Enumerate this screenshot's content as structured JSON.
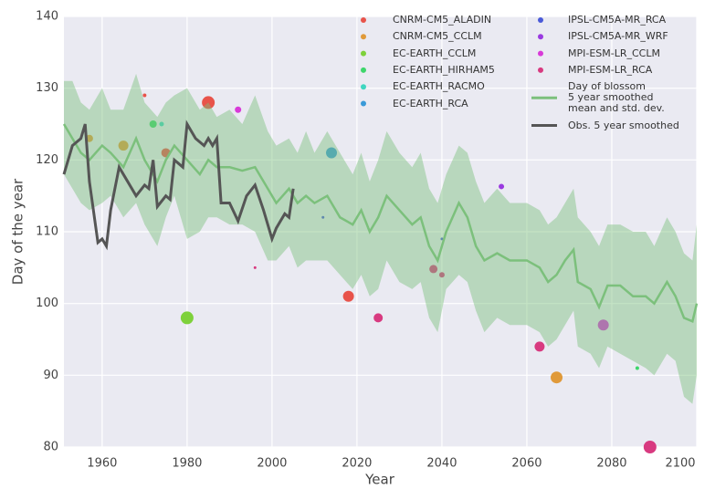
{
  "chart_data": {
    "type": "line",
    "x_label": "Year",
    "y_label": "Day of the year",
    "xlim": [
      1951,
      2100
    ],
    "ylim": [
      80,
      140
    ],
    "xticks": [
      1960,
      1980,
      2000,
      2020,
      2040,
      2060,
      2080,
      2100
    ],
    "yticks": [
      80,
      90,
      100,
      110,
      120,
      130,
      140
    ],
    "grid": true,
    "legend": "upper right",
    "series": [
      {
        "name": "CNRM-CM5_ALADIN",
        "type": "scatter",
        "color": "#e8534a",
        "x": [
          1985,
          1975,
          2018,
          1970
        ],
        "values": [
          128,
          121,
          101,
          129
        ],
        "sizes": [
          7,
          5,
          6,
          2
        ]
      },
      {
        "name": "CNRM-CM5_CCLM",
        "type": "scatter",
        "color": "#e09a3a",
        "x": [
          1957,
          1965,
          2067
        ],
        "values": [
          123,
          122,
          89.7
        ],
        "sizes": [
          4,
          5.5,
          6.5
        ]
      },
      {
        "name": "EC-EARTH_CCLM",
        "type": "scatter",
        "color": "#7ed13b",
        "x": [
          1980
        ],
        "values": [
          98
        ],
        "sizes": [
          7
        ]
      },
      {
        "name": "EC-EARTH_HIRHAM5",
        "type": "scatter",
        "color": "#3ed66b",
        "x": [
          1972,
          2086
        ],
        "values": [
          125,
          91
        ],
        "sizes": [
          4,
          2
        ]
      },
      {
        "name": "EC-EARTH_RACMO",
        "type": "scatter",
        "color": "#3fd6c0",
        "x": [
          1974
        ],
        "values": [
          125
        ],
        "sizes": [
          2.5
        ]
      },
      {
        "name": "EC-EARTH_RCA",
        "type": "scatter",
        "color": "#3a9ad8",
        "x": [
          2014
        ],
        "values": [
          121
        ],
        "sizes": [
          6
        ]
      },
      {
        "name": "IPSL-CM5A-MR_RCA",
        "type": "scatter",
        "color": "#4a5ad8",
        "x": [
          2012,
          2040
        ],
        "values": [
          112,
          109
        ],
        "sizes": [
          1.5,
          1.5
        ]
      },
      {
        "name": "IPSL-CM5A-MR_WRF",
        "type": "scatter",
        "color": "#9a3ae0",
        "x": [
          2054
        ],
        "values": [
          116.3
        ],
        "sizes": [
          3
        ]
      },
      {
        "name": "MPI-ESM-LR_CCLM",
        "type": "scatter",
        "color": "#d83ad8",
        "x": [
          1992,
          2078
        ],
        "values": [
          127,
          97
        ],
        "sizes": [
          3.5,
          6
        ]
      },
      {
        "name": "MPI-ESM-LR_RCA",
        "type": "scatter",
        "color": "#d83a80",
        "x": [
          2025,
          2038,
          2040,
          2063,
          2089,
          1996
        ],
        "values": [
          98,
          104.8,
          104,
          94,
          80,
          105
        ],
        "sizes": [
          5,
          4.5,
          3,
          5.5,
          7,
          1.5
        ]
      },
      {
        "name": "Day of blossom\n5 year smoothed\nmean and std. dev.",
        "type": "line",
        "color": "#7cc07c",
        "x": [
          1951,
          1953,
          1955,
          1957,
          1960,
          1962,
          1965,
          1968,
          1970,
          1973,
          1975,
          1977,
          1980,
          1983,
          1985,
          1987,
          1990,
          1993,
          1996,
          1999,
          2001,
          2004,
          2006,
          2008,
          2010,
          2013,
          2016,
          2019,
          2021,
          2023,
          2025,
          2027,
          2030,
          2033,
          2035,
          2037,
          2039,
          2041,
          2044,
          2046,
          2048,
          2050,
          2053,
          2056,
          2060,
          2063,
          2065,
          2067,
          2069,
          2071,
          2072,
          2075,
          2077,
          2079,
          2082,
          2085,
          2088,
          2090,
          2093,
          2095,
          2097,
          2099,
          2100
        ],
        "values": [
          125,
          123,
          121,
          120,
          122,
          121,
          119,
          123,
          120,
          117,
          120,
          122,
          120,
          118,
          120,
          119,
          119,
          118.5,
          119,
          116,
          114,
          116,
          114,
          115,
          114,
          115,
          112,
          111,
          113,
          110,
          112,
          115,
          113,
          111,
          112,
          108,
          106,
          110,
          114,
          112,
          108,
          106,
          107,
          106,
          106,
          105,
          103,
          104,
          106,
          107.5,
          103,
          102,
          99.5,
          102.5,
          102.5,
          101,
          101,
          100,
          103,
          101,
          98,
          97.5,
          100
        ],
        "band_high": [
          131,
          131,
          128,
          127,
          130,
          127,
          127,
          132,
          128,
          126,
          128,
          129,
          130,
          127,
          128,
          126,
          127,
          125,
          129,
          124,
          122,
          123,
          121,
          124,
          121,
          124,
          121,
          118,
          121,
          117,
          120,
          124,
          121,
          119,
          121,
          116,
          114,
          118,
          122,
          121,
          117,
          114,
          116,
          114,
          114,
          113,
          111,
          112,
          114,
          116,
          112,
          110,
          108,
          111,
          111,
          110,
          110,
          108,
          112,
          110,
          107,
          106,
          111
        ],
        "band_low": [
          118,
          116,
          114,
          113,
          114,
          115,
          112,
          114,
          111,
          108,
          112,
          115,
          109,
          110,
          112,
          112,
          111,
          111,
          110,
          106,
          106,
          108,
          105,
          106,
          106,
          106,
          104,
          102,
          104,
          101,
          102,
          106,
          103,
          102,
          103,
          98,
          96,
          102,
          104,
          103,
          99,
          96,
          98,
          97,
          97,
          96,
          94,
          95,
          97,
          99,
          94,
          93,
          91,
          94,
          93,
          92,
          91,
          90,
          93,
          92,
          87,
          86,
          90
        ]
      },
      {
        "name": "Obs. 5 year smoothed",
        "type": "line",
        "color": "#555555",
        "x": [
          1951,
          1953,
          1955,
          1956,
          1957,
          1959,
          1960,
          1961,
          1962,
          1964,
          1966,
          1968,
          1970,
          1971,
          1972,
          1973,
          1975,
          1976,
          1977,
          1979,
          1980,
          1982,
          1984,
          1985,
          1986,
          1987,
          1988,
          1990,
          1992,
          1994,
          1996,
          1998,
          2000,
          2001,
          2003,
          2004,
          2005
        ],
        "values": [
          118,
          122,
          123,
          125,
          117,
          108.5,
          109,
          108,
          113,
          119,
          117,
          115,
          116.5,
          116,
          120,
          113.5,
          115,
          114.5,
          120,
          119,
          125,
          123,
          122,
          123,
          122,
          123,
          114,
          114,
          111.5,
          115,
          116.5,
          113,
          109,
          110.5,
          112.5,
          112,
          116
        ]
      }
    ]
  }
}
